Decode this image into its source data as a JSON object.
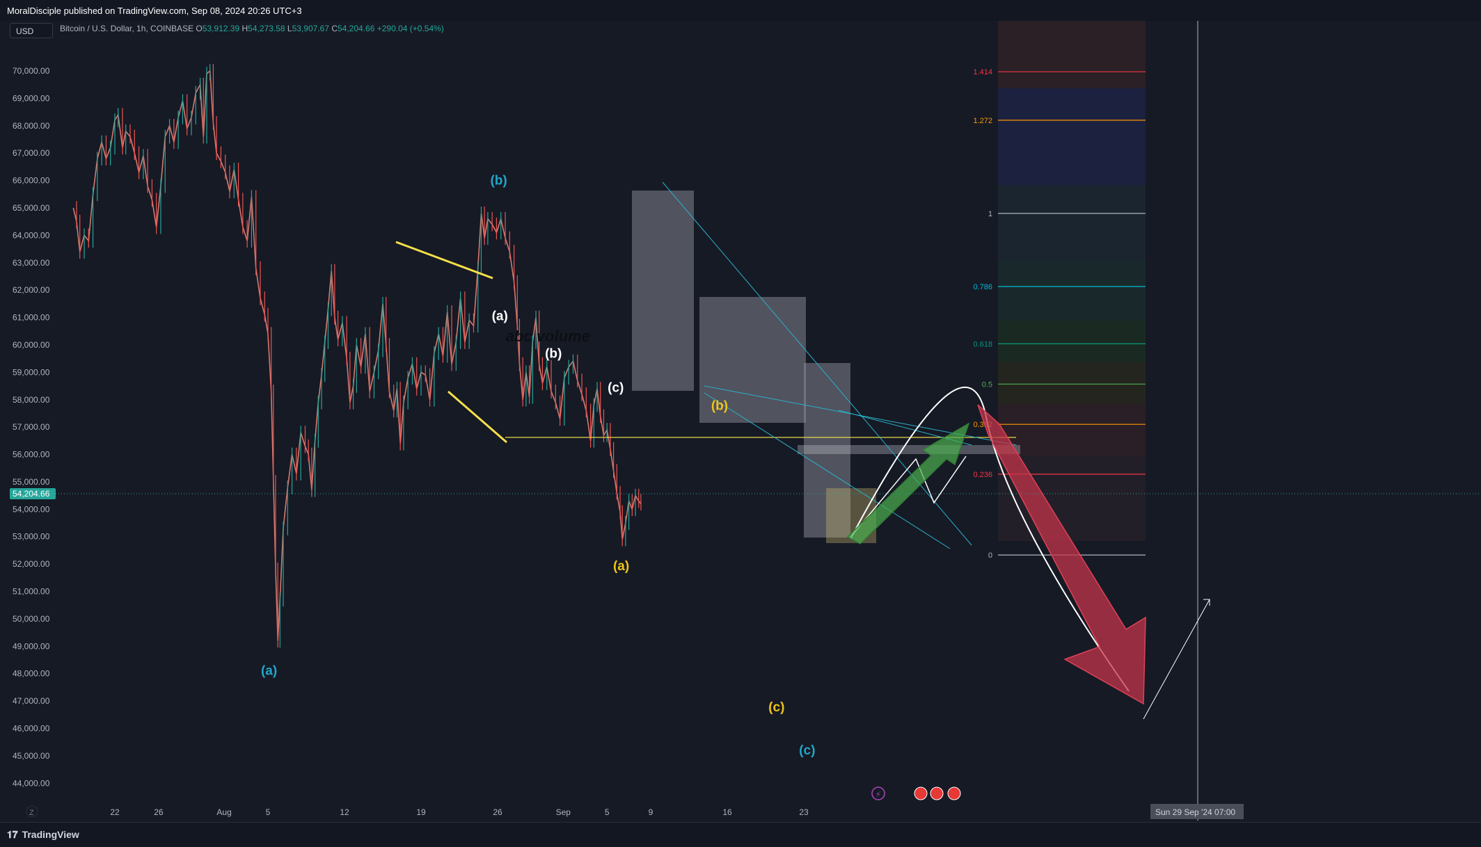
{
  "header": {
    "published_by": "MoralDisciple published on TradingView.com, Sep 08, 2024 20:26 UTC+3"
  },
  "currency_label": "USD",
  "symbol": {
    "name": "Bitcoin / U.S. Dollar, 1h, COINBASE",
    "open_label": "O",
    "open": "53,912.39",
    "high_label": "H",
    "high": "54,273.58",
    "low_label": "L",
    "low": "53,907.67",
    "close_label": "C",
    "close": "54,204.66",
    "change": "+290.04 (+0.54%)"
  },
  "colors": {
    "background": "#161a25",
    "up": "#26a69a",
    "down": "#ef5350",
    "price_tag": "#26a69a"
  },
  "footer": {
    "brand": "TradingView",
    "z_label": "Z"
  },
  "chart_data": {
    "type": "line",
    "title": "Bitcoin / U.S. Dollar, 1h, COINBASE",
    "ylim": [
      43500,
      70500
    ],
    "y_tick_labels": [
      "70,000.00",
      "69,000.00",
      "68,000.00",
      "67,000.00",
      "66,000.00",
      "65,000.00",
      "64,000.00",
      "63,000.00",
      "62,000.00",
      "61,000.00",
      "60,000.00",
      "59,000.00",
      "58,000.00",
      "57,000.00",
      "56,000.00",
      "55,000.00",
      "54,000.00",
      "53,000.00",
      "52,000.00",
      "51,000.00",
      "50,000.00",
      "49,000.00",
      "48,000.00",
      "47,000.00",
      "46,000.00",
      "45,000.00",
      "44,000.00"
    ],
    "y_ticks": [
      70000,
      69000,
      68000,
      67000,
      66000,
      65000,
      64000,
      63000,
      62000,
      61000,
      60000,
      59000,
      58000,
      57000,
      56000,
      55000,
      54000,
      53000,
      52000,
      51000,
      50000,
      49000,
      48000,
      47000,
      46000,
      45000,
      44000
    ],
    "x_tick_labels": [
      "22",
      "26",
      "Aug",
      "5",
      "12",
      "19",
      "26",
      "Sep",
      "5",
      "9",
      "16",
      "23"
    ],
    "x_ticks_day": [
      21,
      25,
      31,
      35,
      42,
      49,
      56,
      62,
      66,
      70,
      77,
      84
    ],
    "x_cursor_label": "Sun 29 Sep '24   07:00",
    "x_cursor_day": 90.3,
    "x_range_day": [
      17.2,
      100
    ],
    "last_price": {
      "label": "54,204.66",
      "value": 54204.66
    },
    "price_path": [
      [
        17.2,
        65000
      ],
      [
        17.5,
        64500
      ],
      [
        17.8,
        63400
      ],
      [
        18.2,
        64000
      ],
      [
        18.6,
        63800
      ],
      [
        19,
        65500
      ],
      [
        19.4,
        66800
      ],
      [
        19.8,
        67400
      ],
      [
        20.2,
        66800
      ],
      [
        20.6,
        67200
      ],
      [
        21,
        68200
      ],
      [
        21.3,
        68400
      ],
      [
        21.7,
        67200
      ],
      [
        22,
        67800
      ],
      [
        22.4,
        67600
      ],
      [
        22.8,
        67000
      ],
      [
        23.2,
        66300
      ],
      [
        23.6,
        66900
      ],
      [
        24,
        65800
      ],
      [
        24.4,
        65300
      ],
      [
        24.8,
        64300
      ],
      [
        25.2,
        65800
      ],
      [
        25.6,
        67600
      ],
      [
        26,
        68000
      ],
      [
        26.4,
        67400
      ],
      [
        26.8,
        68300
      ],
      [
        27.2,
        68900
      ],
      [
        27.6,
        67900
      ],
      [
        28,
        68300
      ],
      [
        28.4,
        69200
      ],
      [
        28.8,
        69500
      ],
      [
        29.1,
        67600
      ],
      [
        29.4,
        69900
      ],
      [
        29.7,
        70000
      ],
      [
        30,
        68100
      ],
      [
        30.3,
        67000
      ],
      [
        30.7,
        66700
      ],
      [
        31.1,
        66300
      ],
      [
        31.5,
        65600
      ],
      [
        31.9,
        66400
      ],
      [
        32.3,
        65300
      ],
      [
        32.7,
        64300
      ],
      [
        33.1,
        63800
      ],
      [
        33.5,
        65400
      ],
      [
        33.9,
        62800
      ],
      [
        34.3,
        61700
      ],
      [
        34.7,
        61100
      ],
      [
        35,
        60400
      ],
      [
        35.3,
        58300
      ],
      [
        35.5,
        55000
      ],
      [
        35.7,
        51800
      ],
      [
        35.9,
        49200
      ],
      [
        36.1,
        50700
      ],
      [
        36.4,
        53300
      ],
      [
        36.8,
        54800
      ],
      [
        37.2,
        56000
      ],
      [
        37.6,
        55300
      ],
      [
        38,
        56800
      ],
      [
        38.4,
        56300
      ],
      [
        38.7,
        56000
      ],
      [
        39,
        54700
      ],
      [
        39.3,
        56500
      ],
      [
        39.6,
        57900
      ],
      [
        39.9,
        58900
      ],
      [
        40.2,
        60100
      ],
      [
        40.5,
        61300
      ],
      [
        40.8,
        62700
      ],
      [
        41.1,
        61000
      ],
      [
        41.4,
        60200
      ],
      [
        41.8,
        60800
      ],
      [
        42.2,
        59500
      ],
      [
        42.5,
        57900
      ],
      [
        42.8,
        58500
      ],
      [
        43.1,
        60000
      ],
      [
        43.5,
        59200
      ],
      [
        43.9,
        60400
      ],
      [
        44.3,
        58300
      ],
      [
        44.7,
        59000
      ],
      [
        45.1,
        59800
      ],
      [
        45.5,
        61500
      ],
      [
        45.8,
        60000
      ],
      [
        46.1,
        58300
      ],
      [
        46.5,
        57600
      ],
      [
        46.8,
        58400
      ],
      [
        47.1,
        56400
      ],
      [
        47.4,
        57900
      ],
      [
        47.8,
        58800
      ],
      [
        48.2,
        59300
      ],
      [
        48.6,
        58400
      ],
      [
        49,
        59000
      ],
      [
        49.4,
        58900
      ],
      [
        49.8,
        58000
      ],
      [
        50.2,
        59700
      ],
      [
        50.6,
        60400
      ],
      [
        51,
        59600
      ],
      [
        51.4,
        61200
      ],
      [
        51.8,
        59300
      ],
      [
        52.2,
        60100
      ],
      [
        52.6,
        61700
      ],
      [
        53,
        60100
      ],
      [
        53.4,
        60900
      ],
      [
        53.8,
        60700
      ],
      [
        54.2,
        62800
      ],
      [
        54.5,
        64800
      ],
      [
        54.8,
        63900
      ],
      [
        55.1,
        64600
      ],
      [
        55.5,
        64400
      ],
      [
        55.9,
        64100
      ],
      [
        56.3,
        64600
      ],
      [
        56.7,
        63900
      ],
      [
        57.1,
        63400
      ],
      [
        57.5,
        62300
      ],
      [
        57.8,
        60700
      ],
      [
        58,
        59300
      ],
      [
        58.3,
        58000
      ],
      [
        58.6,
        59000
      ],
      [
        58.9,
        58100
      ],
      [
        59.2,
        60100
      ],
      [
        59.5,
        61000
      ],
      [
        59.8,
        59300
      ],
      [
        60.1,
        58600
      ],
      [
        60.5,
        59200
      ],
      [
        60.9,
        58300
      ],
      [
        61.3,
        57900
      ],
      [
        61.7,
        57300
      ],
      [
        62.1,
        58800
      ],
      [
        62.5,
        59200
      ],
      [
        62.9,
        59400
      ],
      [
        63.3,
        58700
      ],
      [
        63.7,
        58200
      ],
      [
        64.1,
        57600
      ],
      [
        64.5,
        56500
      ],
      [
        64.8,
        57800
      ],
      [
        65.1,
        58400
      ],
      [
        65.4,
        57400
      ],
      [
        65.7,
        56700
      ],
      [
        66,
        56900
      ],
      [
        66.3,
        56200
      ],
      [
        66.6,
        55400
      ],
      [
        66.9,
        54600
      ],
      [
        67.2,
        53900
      ],
      [
        67.4,
        52900
      ],
      [
        67.7,
        53500
      ],
      [
        68,
        54300
      ],
      [
        68.3,
        54000
      ],
      [
        68.6,
        54500
      ],
      [
        68.9,
        54300
      ],
      [
        69.1,
        54204.66
      ]
    ],
    "fib_levels": [
      {
        "label": "1.414",
        "value": 69970,
        "color": "#f23645"
      },
      {
        "label": "1.272",
        "value": 68200,
        "color": "#ff9800"
      },
      {
        "label": "1",
        "value": 64800,
        "color": "#b2b5be"
      },
      {
        "label": "0.786",
        "value": 62130,
        "color": "#00bcd4"
      },
      {
        "label": "0.618",
        "value": 60040,
        "color": "#089981"
      },
      {
        "label": "0.5",
        "value": 58570,
        "color": "#4caf50"
      },
      {
        "label": "0.382",
        "value": 57100,
        "color": "#ff9800"
      },
      {
        "label": "0.236",
        "value": 55280,
        "color": "#f23645"
      },
      {
        "label": "0",
        "value": 52330,
        "color": "#b2b5be"
      }
    ],
    "annotations": [
      {
        "text": "(b)",
        "day": 56.1,
        "value": 65850,
        "color": "#22a7c9"
      },
      {
        "text": "(a)",
        "day": 35.1,
        "value": 47950,
        "color": "#22a7c9"
      },
      {
        "text": "(c)",
        "day": 84.3,
        "value": 45050,
        "color": "#22a7c9"
      },
      {
        "text": "(a)",
        "day": 56.2,
        "value": 60900,
        "color": "#ffffff"
      },
      {
        "text": "(b)",
        "day": 61.1,
        "value": 59530,
        "color": "#ffffff"
      },
      {
        "text": "(c)",
        "day": 66.8,
        "value": 58280,
        "color": "#ffffff"
      },
      {
        "text": "(b)",
        "day": 76.3,
        "value": 57620,
        "color": "#f0c419"
      },
      {
        "text": "(a)",
        "day": 67.3,
        "value": 51780,
        "color": "#f0c419"
      },
      {
        "text": "(c)",
        "day": 81.5,
        "value": 46620,
        "color": "#f0c419"
      },
      {
        "text": "abc volume",
        "day": 60.6,
        "value": 60130,
        "color": "#0d0f15"
      }
    ]
  }
}
